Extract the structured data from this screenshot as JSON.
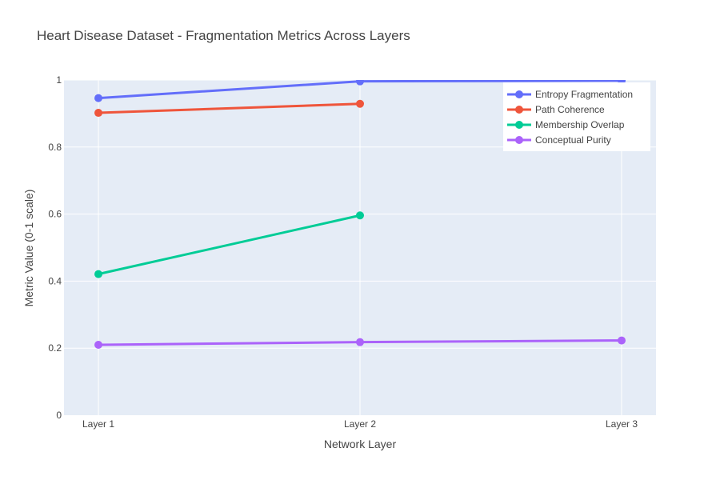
{
  "chart_data": {
    "type": "line",
    "title": "Heart Disease Dataset - Fragmentation Metrics Across Layers",
    "xlabel": "Network Layer",
    "ylabel": "Metric Value (0-1 scale)",
    "categories": [
      "Layer 1",
      "Layer 2",
      "Layer 3"
    ],
    "ylim": [
      0,
      1
    ],
    "yticks": [
      0,
      0.2,
      0.4,
      0.6,
      0.8,
      1
    ],
    "ytick_labels": [
      "0",
      "0.2",
      "0.4",
      "0.6",
      "0.8",
      "1"
    ],
    "grid": true,
    "legend_position": "top-right",
    "plot_background": "#e5ecf6",
    "series": [
      {
        "name": "Entropy Fragmentation",
        "color": "#636efa",
        "values": [
          0.946,
          0.996,
          0.998
        ]
      },
      {
        "name": "Path Coherence",
        "color": "#ef553b",
        "values": [
          0.902,
          0.929,
          null
        ]
      },
      {
        "name": "Membership Overlap",
        "color": "#00cc96",
        "values": [
          0.421,
          0.596,
          null
        ]
      },
      {
        "name": "Conceptual Purity",
        "color": "#ab63fa",
        "values": [
          0.21,
          0.218,
          0.223
        ]
      }
    ]
  }
}
